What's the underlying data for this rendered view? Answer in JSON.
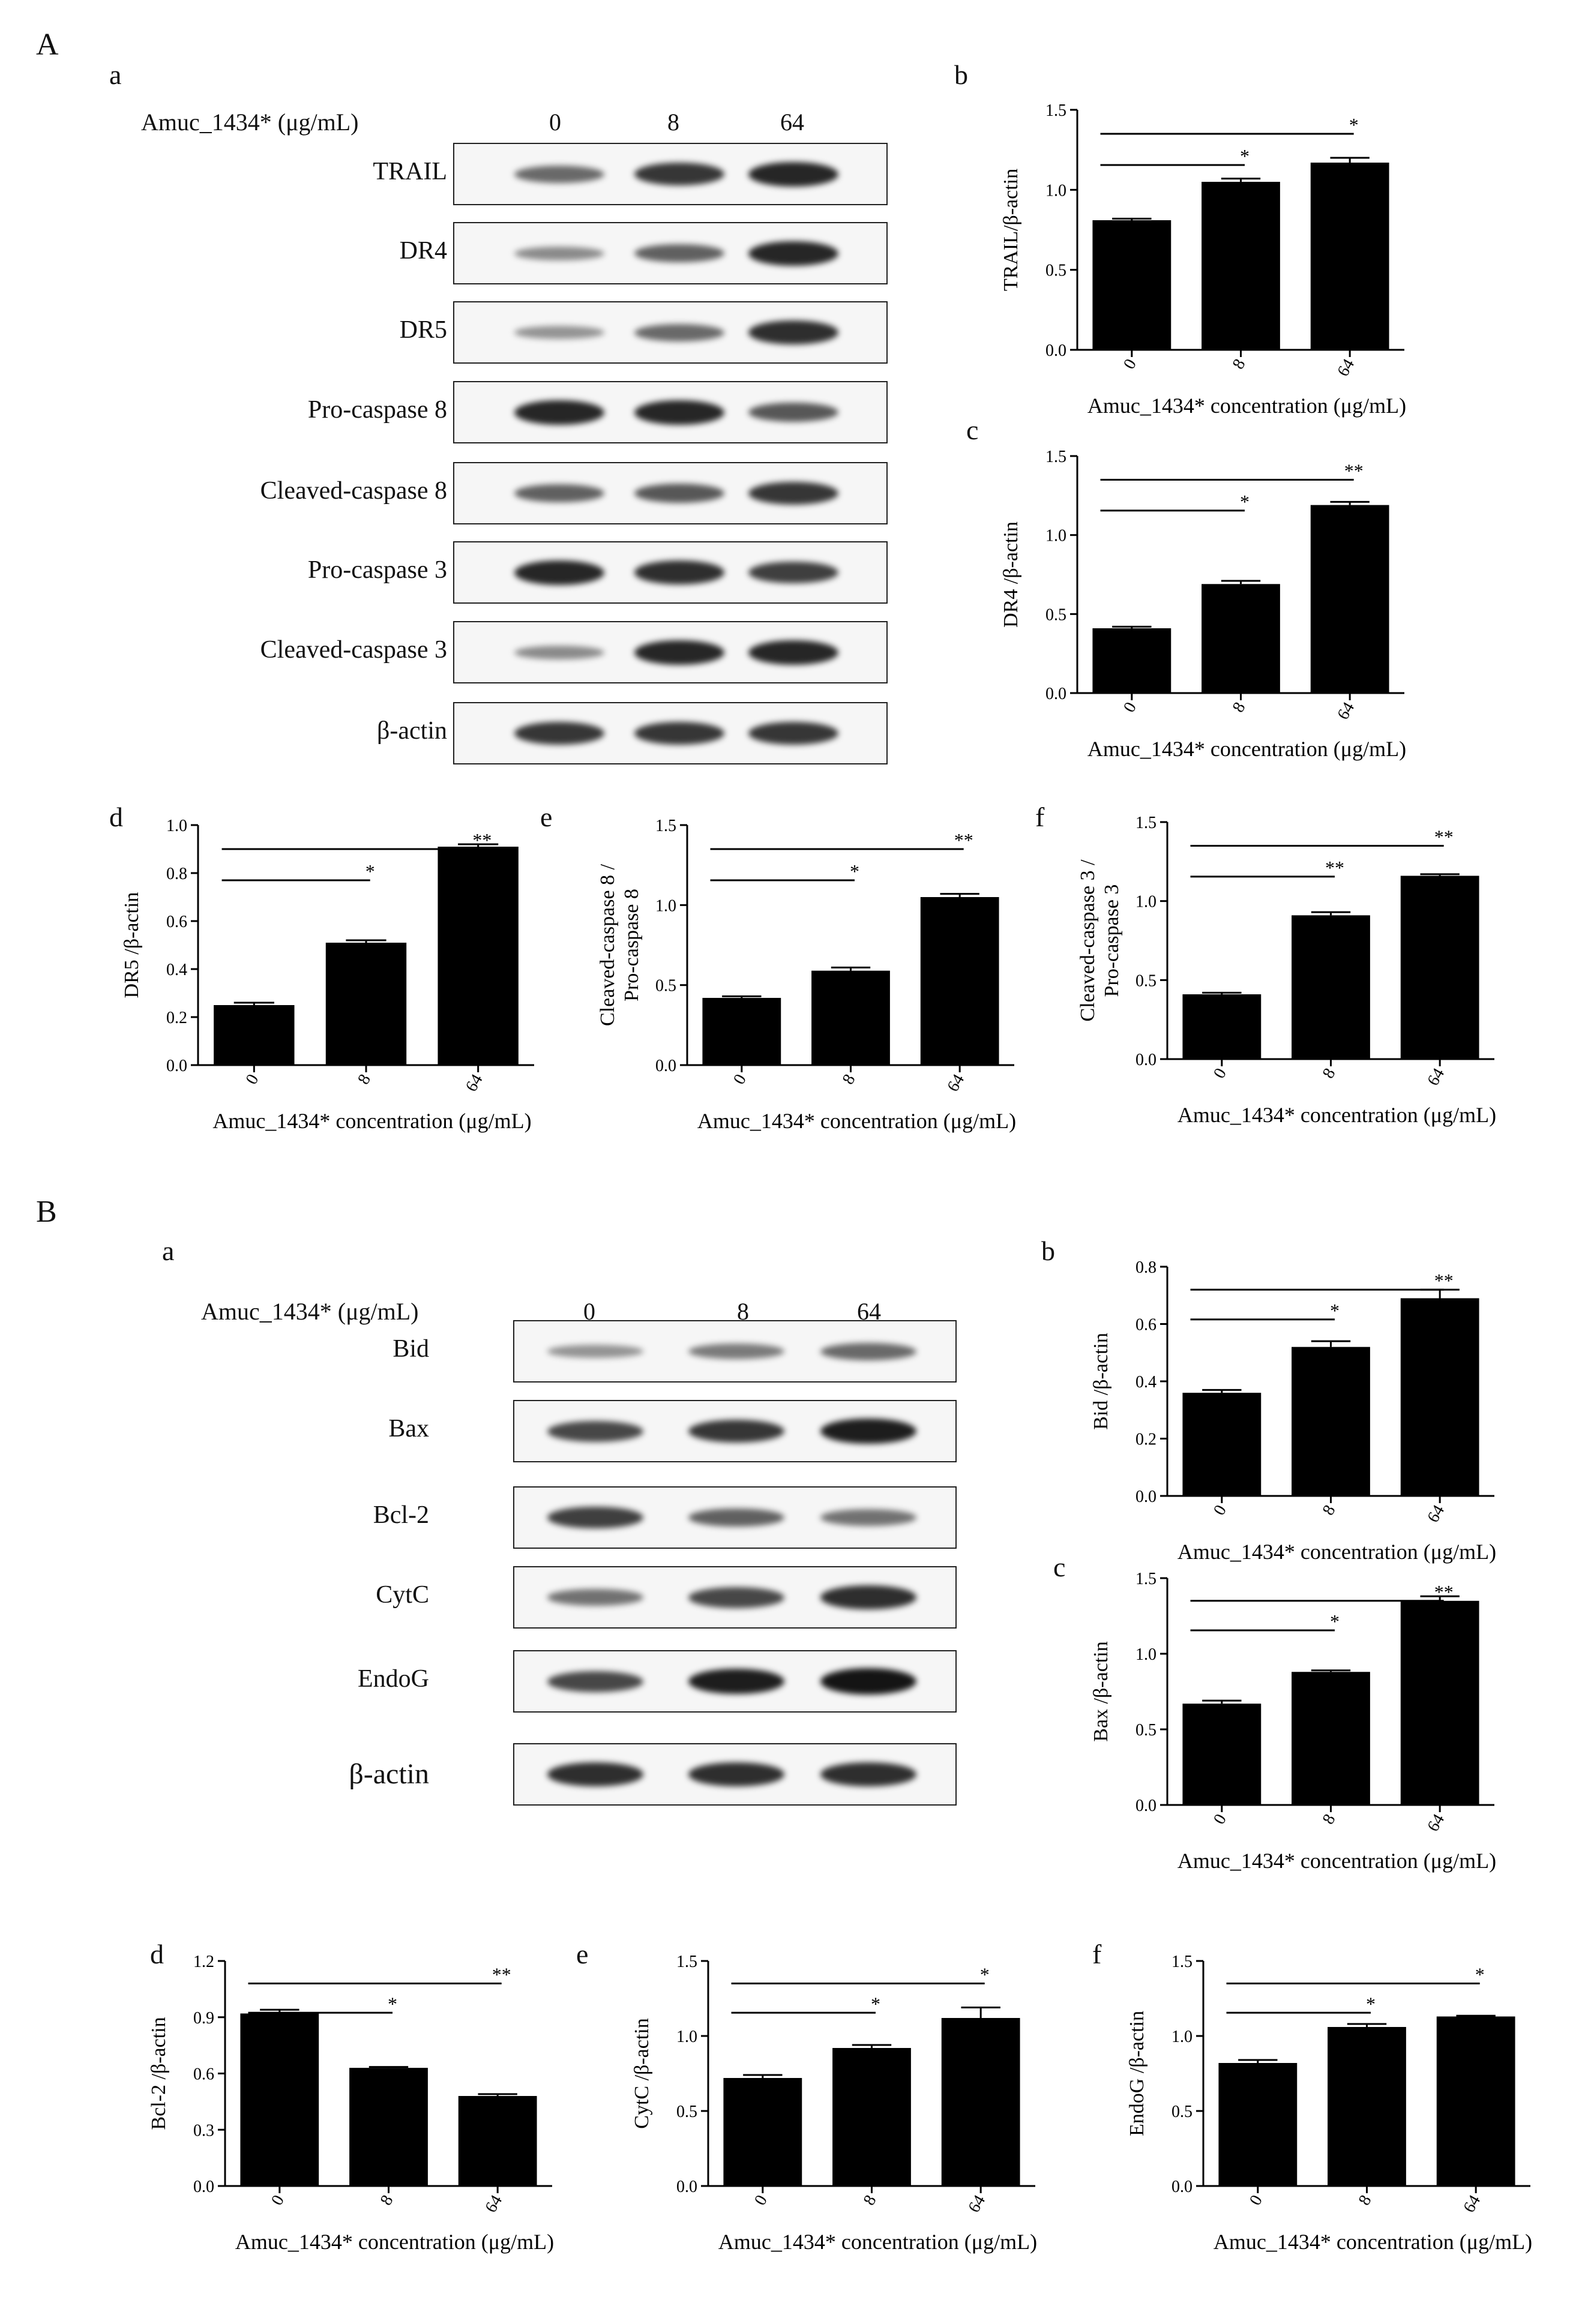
{
  "panels": {
    "A": "A",
    "B": "B",
    "Aa": "a",
    "Ab": "b",
    "Ac": "c",
    "Ad": "d",
    "Ae": "e",
    "Af": "f",
    "Ba": "a",
    "Bb": "b",
    "Bc": "c",
    "Bd": "d",
    "Be": "e",
    "Bf": "f"
  },
  "blotA": {
    "treatment_label": "Amuc_1434* (μg/mL)",
    "concentrations": [
      "0",
      "8",
      "64"
    ],
    "rows": [
      "TRAIL",
      "DR4",
      "DR5",
      "Pro-caspase 8",
      "Cleaved-caspase 8",
      "Pro-caspase 3",
      "Cleaved-caspase 3",
      "β-actin"
    ]
  },
  "blotB": {
    "treatment_label": "Amuc_1434* (μg/mL)",
    "concentrations": [
      "0",
      "8",
      "64"
    ],
    "rows": [
      "Bid",
      "Bax",
      "Bcl-2",
      "CytC",
      "EndoG",
      "β-actin"
    ]
  },
  "colors": {
    "bar": "#000000",
    "axis": "#000000",
    "blot_background": "#f6f6f6",
    "band": "#1a1a1a"
  },
  "chart_data": [
    {
      "id": "A-b",
      "type": "bar",
      "categories": [
        "0",
        "8",
        "64"
      ],
      "values": [
        0.81,
        1.05,
        1.17
      ],
      "errors": [
        0.01,
        0.02,
        0.03
      ],
      "ylabel": "TRAIL/β-actin",
      "xlabel": "Amuc_1434* concentration (μg/mL)",
      "ylim": [
        0,
        1.5
      ],
      "yticks": [
        "0.0",
        "0.5",
        "1.0",
        "1.5"
      ],
      "sig": [
        "*",
        "*"
      ]
    },
    {
      "id": "A-c",
      "type": "bar",
      "categories": [
        "0",
        "8",
        "64"
      ],
      "values": [
        0.41,
        0.69,
        1.19
      ],
      "errors": [
        0.01,
        0.02,
        0.02
      ],
      "ylabel": "DR4 /β-actin",
      "xlabel": "Amuc_1434* concentration (μg/mL)",
      "ylim": [
        0,
        1.5
      ],
      "yticks": [
        "0.0",
        "0.5",
        "1.0",
        "1.5"
      ],
      "sig": [
        "*",
        "**"
      ]
    },
    {
      "id": "A-d",
      "type": "bar",
      "categories": [
        "0",
        "8",
        "64"
      ],
      "values": [
        0.25,
        0.51,
        0.91
      ],
      "errors": [
        0.01,
        0.01,
        0.01
      ],
      "ylabel": "DR5 /β-actin",
      "xlabel": "Amuc_1434* concentration (μg/mL)",
      "ylim": [
        0,
        1.0
      ],
      "yticks": [
        "0.0",
        "0.2",
        "0.4",
        "0.6",
        "0.8",
        "1.0"
      ],
      "sig": [
        "*",
        "**"
      ]
    },
    {
      "id": "A-e",
      "type": "bar",
      "categories": [
        "0",
        "8",
        "64"
      ],
      "values": [
        0.42,
        0.59,
        1.05
      ],
      "errors": [
        0.01,
        0.02,
        0.02
      ],
      "ylabel": "Cleaved-caspase 8 / Pro-caspase 8",
      "xlabel": "Amuc_1434* concentration (μg/mL)",
      "ylim": [
        0,
        1.5
      ],
      "yticks": [
        "0.0",
        "0.5",
        "1.0",
        "1.5"
      ],
      "sig": [
        "*",
        "**"
      ]
    },
    {
      "id": "A-f",
      "type": "bar",
      "categories": [
        "0",
        "8",
        "64"
      ],
      "values": [
        0.41,
        0.91,
        1.16
      ],
      "errors": [
        0.01,
        0.02,
        0.01
      ],
      "ylabel": "Cleaved-caspase 3 / Pro-caspase 3",
      "xlabel": "Amuc_1434* concentration (μg/mL)",
      "ylim": [
        0,
        1.5
      ],
      "yticks": [
        "0.0",
        "0.5",
        "1.0",
        "1.5"
      ],
      "sig": [
        "**",
        "**"
      ]
    },
    {
      "id": "B-b",
      "type": "bar",
      "categories": [
        "0",
        "8",
        "64"
      ],
      "values": [
        0.36,
        0.52,
        0.69
      ],
      "errors": [
        0.01,
        0.02,
        0.03
      ],
      "ylabel": "Bid /β-actin",
      "xlabel": "Amuc_1434* concentration (μg/mL)",
      "ylim": [
        0,
        0.8
      ],
      "yticks": [
        "0.0",
        "0.2",
        "0.4",
        "0.6",
        "0.8"
      ],
      "sig": [
        "*",
        "**"
      ]
    },
    {
      "id": "B-c",
      "type": "bar",
      "categories": [
        "0",
        "8",
        "64"
      ],
      "values": [
        0.67,
        0.88,
        1.35
      ],
      "errors": [
        0.02,
        0.01,
        0.03
      ],
      "ylabel": "Bax /β-actin",
      "xlabel": "Amuc_1434* concentration (μg/mL)",
      "ylim": [
        0,
        1.5
      ],
      "yticks": [
        "0.0",
        "0.5",
        "1.0",
        "1.5"
      ],
      "sig": [
        "*",
        "**"
      ]
    },
    {
      "id": "B-d",
      "type": "bar",
      "categories": [
        "0",
        "8",
        "64"
      ],
      "values": [
        0.92,
        0.63,
        0.48
      ],
      "errors": [
        0.02,
        0.005,
        0.01
      ],
      "ylabel": "Bcl-2 /β-actin",
      "xlabel": "Amuc_1434* concentration (μg/mL)",
      "ylim": [
        0,
        1.2
      ],
      "yticks": [
        "0.0",
        "0.3",
        "0.6",
        "0.9",
        "1.2"
      ],
      "sig": [
        "*",
        "**"
      ]
    },
    {
      "id": "B-e",
      "type": "bar",
      "categories": [
        "0",
        "8",
        "64"
      ],
      "values": [
        0.72,
        0.92,
        1.12
      ],
      "errors": [
        0.02,
        0.02,
        0.07
      ],
      "ylabel": "CytC /β-actin",
      "xlabel": "Amuc_1434* concentration (μg/mL)",
      "ylim": [
        0,
        1.5
      ],
      "yticks": [
        "0.0",
        "0.5",
        "1.0",
        "1.5"
      ],
      "sig": [
        "*",
        "*"
      ]
    },
    {
      "id": "B-f",
      "type": "bar",
      "categories": [
        "0",
        "8",
        "64"
      ],
      "values": [
        0.82,
        1.06,
        1.13
      ],
      "errors": [
        0.02,
        0.02,
        0.005
      ],
      "ylabel": "EndoG /β-actin",
      "xlabel": "Amuc_1434* concentration (μg/mL)",
      "ylim": [
        0,
        1.5
      ],
      "yticks": [
        "0.0",
        "0.5",
        "1.0",
        "1.5"
      ],
      "sig": [
        "*",
        "*"
      ]
    }
  ]
}
